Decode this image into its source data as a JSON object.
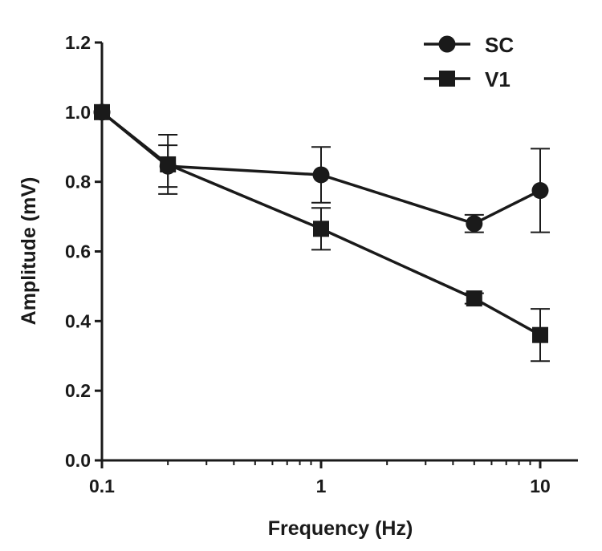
{
  "chart_data": {
    "type": "line",
    "xscale": "log",
    "xlabel": "Frequency (Hz)",
    "ylabel": "Amplitude (mV)",
    "xlim": [
      0.1,
      15
    ],
    "ylim": [
      0,
      1.2
    ],
    "x_ticks": [
      0.1,
      1,
      10
    ],
    "x_tick_labels": [
      "0.1",
      "1",
      "10"
    ],
    "y_ticks": [
      0,
      0.2,
      0.4,
      0.6,
      0.8,
      1.0,
      1.2
    ],
    "y_tick_labels": [
      "0.0",
      "0.2",
      "0.4",
      "0.6",
      "0.8",
      "1.0",
      "1.2"
    ],
    "grid": false,
    "legend_position": "top-right",
    "series": [
      {
        "name": "SC",
        "marker": "circle",
        "color": "#1a1a1a",
        "x": [
          0.1,
          0.2,
          1,
          5,
          10
        ],
        "y": [
          1.0,
          0.845,
          0.82,
          0.68,
          0.775
        ],
        "err": [
          0,
          0.06,
          0.08,
          0.025,
          0.12
        ]
      },
      {
        "name": "V1",
        "marker": "square",
        "color": "#1a1a1a",
        "x": [
          0.1,
          0.2,
          1,
          5,
          10
        ],
        "y": [
          1.0,
          0.85,
          0.665,
          0.465,
          0.36
        ],
        "err": [
          0,
          0.085,
          0.06,
          0.015,
          0.075
        ]
      }
    ]
  }
}
